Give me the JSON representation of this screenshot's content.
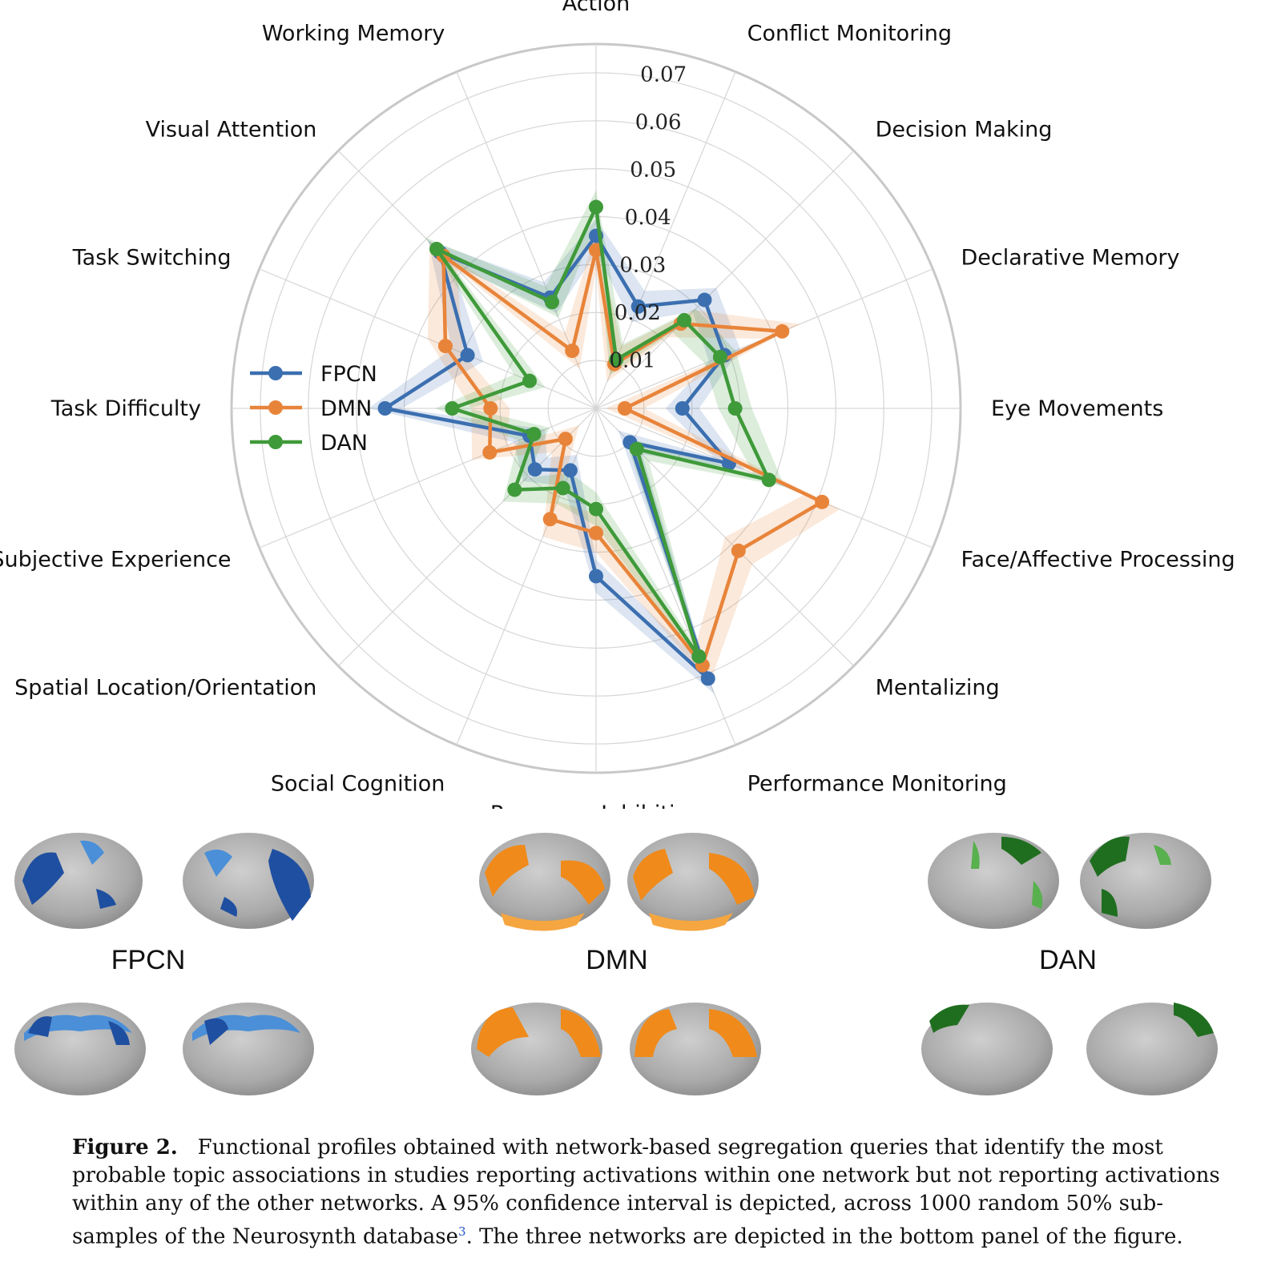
{
  "chart_data": {
    "type": "radar",
    "axes": [
      "Action",
      "Conflict Monitoring",
      "Decision Making",
      "Declarative Memory",
      "Eye Movements",
      "Face/Affective Processing",
      "Mentalizing",
      "Performance Monitoring",
      "Response Inhibition",
      "Social Cognition",
      "Spatial Location/Orientation",
      "Subjective Experience",
      "Task Difficulty",
      "Task Switching",
      "Visual Attention",
      "Working Memory"
    ],
    "rticks": [
      0.01,
      0.02,
      0.03,
      0.04,
      0.05,
      0.06,
      0.07
    ],
    "rtick_labels": [
      "0.01",
      "0.02",
      "0.03",
      "0.04",
      "0.05",
      "0.06",
      "0.07"
    ],
    "rmax": 0.076,
    "legend_position": "left",
    "grid": true,
    "series": [
      {
        "name": "FPCN",
        "color": "#3b6fb0",
        "band": 0.0035,
        "values": [
          0.036,
          0.023,
          0.032,
          0.029,
          0.018,
          0.03,
          0.01,
          0.061,
          0.035,
          0.014,
          0.018,
          0.015,
          0.044,
          0.029,
          0.046,
          0.025
        ]
      },
      {
        "name": "DMN",
        "color": "#e8843a",
        "band": 0.004,
        "values": [
          0.033,
          0.01,
          0.025,
          0.042,
          0.006,
          0.051,
          0.042,
          0.058,
          0.026,
          0.025,
          0.009,
          0.024,
          0.022,
          0.034,
          0.045,
          0.013
        ]
      },
      {
        "name": "DAN",
        "color": "#3f9a3a",
        "band": 0.0035,
        "values": [
          0.042,
          0.011,
          0.026,
          0.028,
          0.029,
          0.039,
          0.012,
          0.056,
          0.021,
          0.018,
          0.024,
          0.014,
          0.03,
          0.015,
          0.047,
          0.024
        ]
      }
    ]
  },
  "networks": {
    "fpcn": {
      "title": "FPCN",
      "color": "#1f4fa0",
      "light": "#4a8fd8"
    },
    "dmn": {
      "title": "DMN",
      "color": "#f08a1a",
      "light": "#f5a640"
    },
    "dan": {
      "title": "DAN",
      "color": "#1f6e1f",
      "light": "#58b04e"
    }
  },
  "caption": {
    "label": "Figure 2.",
    "text": "Functional profiles obtained with network-based segregation queries that identify the most probable topic associations in studies reporting activations within one network but not reporting activations within any of the other networks. A 95% confidence interval is depicted, across 1000 random 50% sub-samples of the Neurosynth database",
    "ref": "3",
    "tail": ". The three networks are depicted in the bottom panel of the figure."
  }
}
